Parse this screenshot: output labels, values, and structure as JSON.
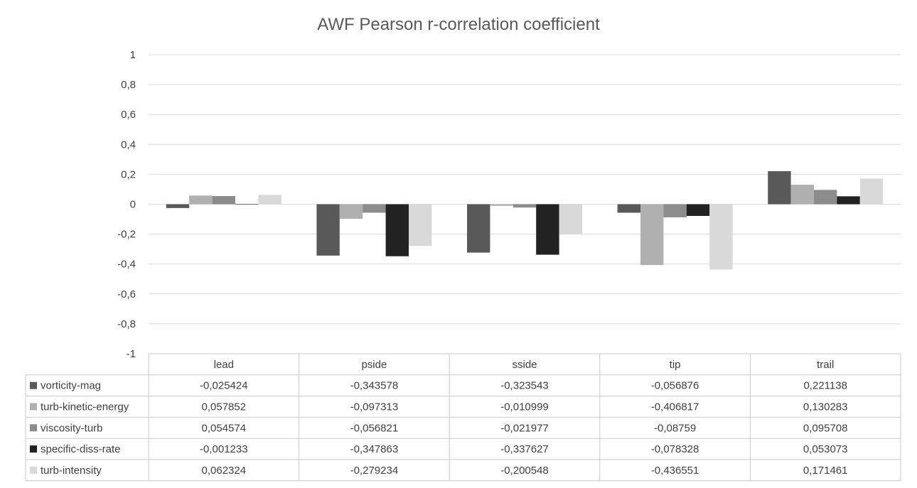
{
  "chart_data": {
    "type": "bar",
    "title": "AWF Pearson r-correlation coefficient",
    "categories": [
      "lead",
      "pside",
      "sside",
      "tip",
      "trail"
    ],
    "ylim": [
      -1,
      1
    ],
    "yticks": [
      1,
      0.8,
      0.6,
      0.4,
      0.2,
      0,
      -0.2,
      -0.4,
      -0.6,
      -0.8,
      -1
    ],
    "ytick_labels": [
      "1",
      "0,8",
      "0,6",
      "0,4",
      "0,2",
      "0",
      "-0,2",
      "-0,4",
      "-0,6",
      "-0,8",
      "-1"
    ],
    "grid": true,
    "legend": "data-table",
    "series": [
      {
        "name": "vorticity-mag",
        "color": "#595959",
        "values": [
          -0.025424,
          -0.343578,
          -0.323543,
          -0.056876,
          0.221138
        ],
        "labels": [
          "-0,025424",
          "-0,343578",
          "-0,323543",
          "-0,056876",
          "0,221138"
        ]
      },
      {
        "name": "turb-kinetic-energy",
        "color": "#b0b0b0",
        "values": [
          0.057852,
          -0.097313,
          -0.010999,
          -0.406817,
          0.130283
        ],
        "labels": [
          "0,057852",
          "-0,097313",
          "-0,010999",
          "-0,406817",
          "0,130283"
        ]
      },
      {
        "name": "viscosity-turb",
        "color": "#8c8c8c",
        "values": [
          0.054574,
          -0.056821,
          -0.021977,
          -0.08759,
          0.095708
        ],
        "labels": [
          "0,054574",
          "-0,056821",
          "-0,021977",
          "-0,08759",
          "0,095708"
        ]
      },
      {
        "name": "specific-diss-rate",
        "color": "#222222",
        "values": [
          -0.001233,
          -0.347863,
          -0.337627,
          -0.078328,
          0.053073
        ],
        "labels": [
          "-0,001233",
          "-0,347863",
          "-0,337627",
          "-0,078328",
          "0,053073"
        ]
      },
      {
        "name": "turb-intensity",
        "color": "#d9d9d9",
        "values": [
          0.062324,
          -0.279234,
          -0.200548,
          -0.436551,
          0.171461
        ],
        "labels": [
          "0,062324",
          "-0,279234",
          "-0,200548",
          "-0,436551",
          "0,171461"
        ]
      }
    ]
  }
}
